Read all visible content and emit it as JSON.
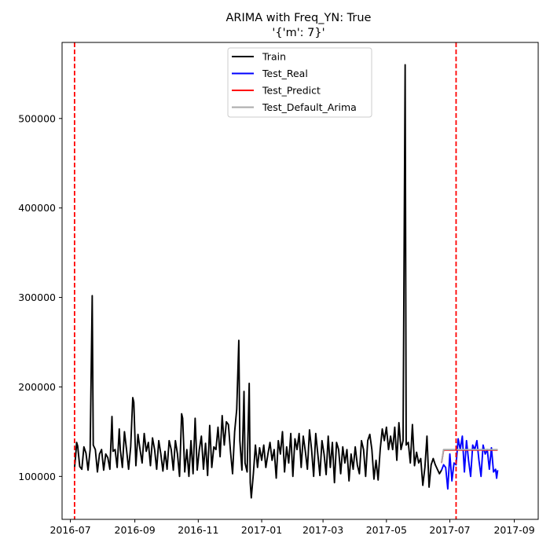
{
  "chart_data": {
    "type": "line",
    "title": "ARIMA with Freq_YN: True",
    "subtitle": "'{'m': 7}'",
    "xlabel": "",
    "ylabel": "",
    "x_axis": {
      "type": "date",
      "range": [
        "2016-06-23",
        "2017-09-24"
      ],
      "ticks": [
        "2016-07-01",
        "2016-09-01",
        "2016-11-01",
        "2017-01-01",
        "2017-03-01",
        "2017-05-01",
        "2017-07-01",
        "2017-09-01"
      ],
      "tick_labels": [
        "2016-07",
        "2016-09",
        "2016-11",
        "2017-01",
        "2017-03",
        "2017-05",
        "2017-07",
        "2017-09"
      ]
    },
    "y_axis": {
      "range": [
        52000,
        585000
      ],
      "ticks": [
        100000,
        200000,
        300000,
        400000,
        500000
      ],
      "tick_labels": [
        "100000",
        "200000",
        "300000",
        "400000",
        "500000"
      ]
    },
    "grid": false,
    "legend_position": "top-center",
    "vertical_lines": [
      {
        "x": "2016-07-05",
        "color": "#ff0000",
        "style": "dashed"
      },
      {
        "x": "2017-07-07",
        "color": "#ff0000",
        "style": "dashed"
      }
    ],
    "series": [
      {
        "name": "Train",
        "color": "#000000",
        "points": [
          [
            "2016-07-05",
            110000
          ],
          [
            "2016-07-06",
            122000
          ],
          [
            "2016-07-07",
            138000
          ],
          [
            "2016-07-08",
            134000
          ],
          [
            "2016-07-10",
            111000
          ],
          [
            "2016-07-12",
            108000
          ],
          [
            "2016-07-14",
            133000
          ],
          [
            "2016-07-16",
            126000
          ],
          [
            "2016-07-18",
            107000
          ],
          [
            "2016-07-20",
            130000
          ],
          [
            "2016-07-22",
            302000
          ],
          [
            "2016-07-23",
            135000
          ],
          [
            "2016-07-25",
            130000
          ],
          [
            "2016-07-27",
            105000
          ],
          [
            "2016-07-29",
            125000
          ],
          [
            "2016-07-31",
            130000
          ],
          [
            "2016-08-02",
            107000
          ],
          [
            "2016-08-04",
            125000
          ],
          [
            "2016-08-06",
            121000
          ],
          [
            "2016-08-08",
            108000
          ],
          [
            "2016-08-10",
            167000
          ],
          [
            "2016-08-11",
            128000
          ],
          [
            "2016-08-13",
            130000
          ],
          [
            "2016-08-15",
            110000
          ],
          [
            "2016-08-17",
            153000
          ],
          [
            "2016-08-18",
            130000
          ],
          [
            "2016-08-20",
            110000
          ],
          [
            "2016-08-22",
            150000
          ],
          [
            "2016-08-24",
            130000
          ],
          [
            "2016-08-26",
            108000
          ],
          [
            "2016-08-28",
            133000
          ],
          [
            "2016-08-30",
            188000
          ],
          [
            "2016-08-31",
            183000
          ],
          [
            "2016-09-02",
            112000
          ],
          [
            "2016-09-04",
            147000
          ],
          [
            "2016-09-06",
            130000
          ],
          [
            "2016-09-08",
            115000
          ],
          [
            "2016-09-10",
            148000
          ],
          [
            "2016-09-12",
            128000
          ],
          [
            "2016-09-14",
            138000
          ],
          [
            "2016-09-16",
            112000
          ],
          [
            "2016-09-18",
            143000
          ],
          [
            "2016-09-20",
            130000
          ],
          [
            "2016-09-22",
            108000
          ],
          [
            "2016-09-24",
            140000
          ],
          [
            "2016-09-26",
            125000
          ],
          [
            "2016-09-28",
            106000
          ],
          [
            "2016-09-30",
            128000
          ],
          [
            "2016-10-02",
            108000
          ],
          [
            "2016-10-04",
            140000
          ],
          [
            "2016-10-06",
            130000
          ],
          [
            "2016-10-08",
            107000
          ],
          [
            "2016-10-10",
            140000
          ],
          [
            "2016-10-12",
            125000
          ],
          [
            "2016-10-14",
            100000
          ],
          [
            "2016-10-16",
            170000
          ],
          [
            "2016-10-17",
            165000
          ],
          [
            "2016-10-19",
            105000
          ],
          [
            "2016-10-21",
            130000
          ],
          [
            "2016-10-23",
            100000
          ],
          [
            "2016-10-25",
            140000
          ],
          [
            "2016-10-27",
            103000
          ],
          [
            "2016-10-29",
            165000
          ],
          [
            "2016-10-31",
            107000
          ],
          [
            "2016-11-02",
            130000
          ],
          [
            "2016-11-04",
            145000
          ],
          [
            "2016-11-06",
            108000
          ],
          [
            "2016-11-08",
            137000
          ],
          [
            "2016-11-10",
            101000
          ],
          [
            "2016-11-12",
            157000
          ],
          [
            "2016-11-14",
            110000
          ],
          [
            "2016-11-16",
            133000
          ],
          [
            "2016-11-18",
            130000
          ],
          [
            "2016-11-20",
            155000
          ],
          [
            "2016-11-22",
            122000
          ],
          [
            "2016-11-24",
            168000
          ],
          [
            "2016-11-26",
            135000
          ],
          [
            "2016-11-28",
            161000
          ],
          [
            "2016-11-30",
            158000
          ],
          [
            "2016-12-02",
            128000
          ],
          [
            "2016-12-04",
            103000
          ],
          [
            "2016-12-06",
            150000
          ],
          [
            "2016-12-08",
            175000
          ],
          [
            "2016-12-10",
            252000
          ],
          [
            "2016-12-11",
            140000
          ],
          [
            "2016-12-13",
            107000
          ],
          [
            "2016-12-15",
            195000
          ],
          [
            "2016-12-16",
            115000
          ],
          [
            "2016-12-18",
            105000
          ],
          [
            "2016-12-20",
            204000
          ],
          [
            "2016-12-21",
            93000
          ],
          [
            "2016-12-22",
            76000
          ],
          [
            "2016-12-24",
            103000
          ],
          [
            "2016-12-26",
            135000
          ],
          [
            "2016-12-28",
            110000
          ],
          [
            "2016-12-30",
            132000
          ],
          [
            "2017-01-01",
            118000
          ],
          [
            "2017-01-03",
            135000
          ],
          [
            "2017-01-05",
            110000
          ],
          [
            "2017-01-07",
            125000
          ],
          [
            "2017-01-09",
            138000
          ],
          [
            "2017-01-11",
            118000
          ],
          [
            "2017-01-13",
            130000
          ],
          [
            "2017-01-15",
            98000
          ],
          [
            "2017-01-17",
            140000
          ],
          [
            "2017-01-19",
            125000
          ],
          [
            "2017-01-21",
            150000
          ],
          [
            "2017-01-23",
            105000
          ],
          [
            "2017-01-25",
            133000
          ],
          [
            "2017-01-27",
            115000
          ],
          [
            "2017-01-29",
            148000
          ],
          [
            "2017-01-31",
            100000
          ],
          [
            "2017-02-02",
            142000
          ],
          [
            "2017-02-04",
            130000
          ],
          [
            "2017-02-06",
            148000
          ],
          [
            "2017-02-08",
            110000
          ],
          [
            "2017-02-10",
            145000
          ],
          [
            "2017-02-12",
            128000
          ],
          [
            "2017-02-14",
            108000
          ],
          [
            "2017-02-16",
            152000
          ],
          [
            "2017-02-18",
            130000
          ],
          [
            "2017-02-20",
            100000
          ],
          [
            "2017-02-22",
            148000
          ],
          [
            "2017-02-24",
            125000
          ],
          [
            "2017-02-26",
            101000
          ],
          [
            "2017-02-28",
            140000
          ],
          [
            "2017-03-02",
            125000
          ],
          [
            "2017-03-04",
            102000
          ],
          [
            "2017-03-06",
            145000
          ],
          [
            "2017-03-08",
            110000
          ],
          [
            "2017-03-10",
            138000
          ],
          [
            "2017-03-12",
            93000
          ],
          [
            "2017-03-14",
            138000
          ],
          [
            "2017-03-16",
            130000
          ],
          [
            "2017-03-18",
            103000
          ],
          [
            "2017-03-20",
            133000
          ],
          [
            "2017-03-22",
            115000
          ],
          [
            "2017-03-24",
            130000
          ],
          [
            "2017-03-26",
            95000
          ],
          [
            "2017-03-28",
            125000
          ],
          [
            "2017-03-30",
            108000
          ],
          [
            "2017-04-01",
            133000
          ],
          [
            "2017-04-03",
            113000
          ],
          [
            "2017-04-05",
            103000
          ],
          [
            "2017-04-07",
            140000
          ],
          [
            "2017-04-09",
            130000
          ],
          [
            "2017-04-11",
            100000
          ],
          [
            "2017-04-13",
            140000
          ],
          [
            "2017-04-15",
            147000
          ],
          [
            "2017-04-17",
            130000
          ],
          [
            "2017-04-19",
            97000
          ],
          [
            "2017-04-21",
            118000
          ],
          [
            "2017-04-23",
            96000
          ],
          [
            "2017-04-25",
            130000
          ],
          [
            "2017-04-27",
            153000
          ],
          [
            "2017-04-29",
            140000
          ],
          [
            "2017-05-01",
            155000
          ],
          [
            "2017-05-03",
            130000
          ],
          [
            "2017-05-05",
            145000
          ],
          [
            "2017-05-07",
            130000
          ],
          [
            "2017-05-09",
            155000
          ],
          [
            "2017-05-11",
            118000
          ],
          [
            "2017-05-13",
            160000
          ],
          [
            "2017-05-15",
            130000
          ],
          [
            "2017-05-17",
            140000
          ],
          [
            "2017-05-19",
            560000
          ],
          [
            "2017-05-20",
            135000
          ],
          [
            "2017-05-22",
            138000
          ],
          [
            "2017-05-24",
            115000
          ],
          [
            "2017-05-26",
            158000
          ],
          [
            "2017-05-28",
            112000
          ],
          [
            "2017-05-30",
            127000
          ],
          [
            "2017-06-01",
            115000
          ],
          [
            "2017-06-03",
            120000
          ],
          [
            "2017-06-05",
            90000
          ],
          [
            "2017-06-07",
            110000
          ],
          [
            "2017-06-09",
            145000
          ],
          [
            "2017-06-11",
            88000
          ],
          [
            "2017-06-13",
            113000
          ],
          [
            "2017-06-15",
            120000
          ],
          [
            "2017-06-17",
            113000
          ],
          [
            "2017-06-19",
            108000
          ],
          [
            "2017-06-21",
            103000
          ],
          [
            "2017-06-23",
            107000
          ]
        ]
      },
      {
        "name": "Test_Real",
        "color": "#0000ff",
        "points": [
          [
            "2017-06-23",
            107000
          ],
          [
            "2017-06-25",
            113000
          ],
          [
            "2017-06-27",
            110000
          ],
          [
            "2017-06-29",
            86000
          ],
          [
            "2017-07-01",
            125000
          ],
          [
            "2017-07-03",
            95000
          ],
          [
            "2017-07-05",
            115000
          ],
          [
            "2017-07-07",
            113000
          ],
          [
            "2017-07-09",
            142000
          ],
          [
            "2017-07-11",
            130000
          ],
          [
            "2017-07-13",
            145000
          ],
          [
            "2017-07-15",
            105000
          ],
          [
            "2017-07-17",
            140000
          ],
          [
            "2017-07-19",
            118000
          ],
          [
            "2017-07-21",
            100000
          ],
          [
            "2017-07-23",
            135000
          ],
          [
            "2017-07-25",
            130000
          ],
          [
            "2017-07-27",
            140000
          ],
          [
            "2017-07-29",
            118000
          ],
          [
            "2017-07-31",
            100000
          ],
          [
            "2017-08-02",
            135000
          ],
          [
            "2017-08-04",
            125000
          ],
          [
            "2017-08-06",
            130000
          ],
          [
            "2017-08-08",
            108000
          ],
          [
            "2017-08-10",
            132000
          ],
          [
            "2017-08-12",
            105000
          ],
          [
            "2017-08-14",
            108000
          ],
          [
            "2017-08-15",
            98000
          ],
          [
            "2017-08-16",
            107000
          ]
        ]
      },
      {
        "name": "Test_Predict",
        "color": "#ff0000",
        "points": [
          [
            "2017-06-23",
            115000
          ],
          [
            "2017-06-25",
            129500
          ],
          [
            "2017-07-10",
            129500
          ],
          [
            "2017-08-16",
            129500
          ]
        ]
      },
      {
        "name": "Test_Default_Arima",
        "color": "#aaaaaa",
        "points": [
          [
            "2017-06-23",
            115000
          ],
          [
            "2017-06-25",
            130000
          ],
          [
            "2017-07-10",
            130000
          ],
          [
            "2017-08-16",
            130000
          ]
        ]
      }
    ]
  }
}
